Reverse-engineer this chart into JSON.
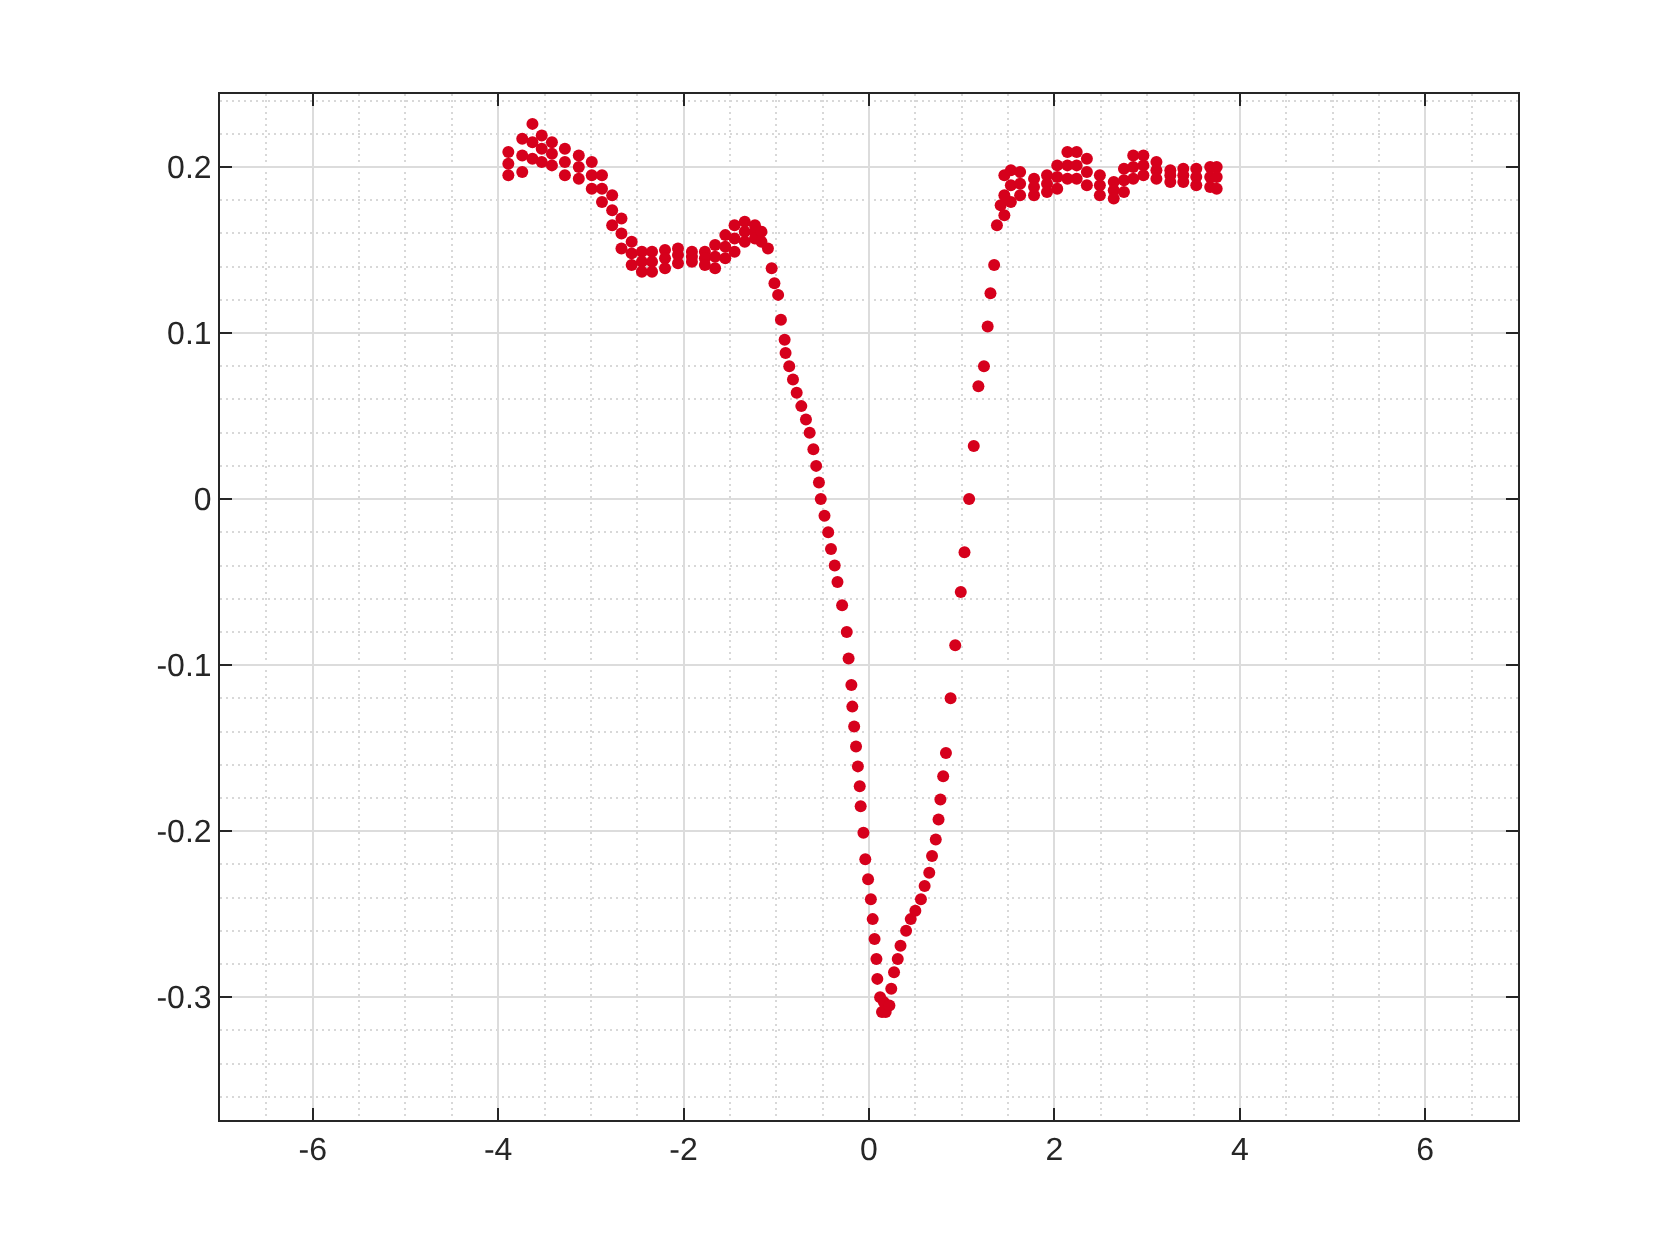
{
  "chart_data": {
    "type": "scatter",
    "color": "#d6001c",
    "marker": "circle",
    "grid": true,
    "xlim": [
      -7,
      7
    ],
    "ylim": [
      -0.374,
      0.244
    ],
    "xticks": [
      -6,
      -4,
      -2,
      0,
      2,
      4,
      6
    ],
    "yticks": [
      -0.3,
      -0.2,
      -0.1,
      0,
      0.1,
      0.2
    ],
    "x": [
      -3.89,
      -3.89,
      -3.89,
      -3.74,
      -3.74,
      -3.74,
      -3.63,
      -3.63,
      -3.63,
      -3.53,
      -3.53,
      -3.53,
      -3.42,
      -3.42,
      -3.42,
      -3.28,
      -3.28,
      -3.28,
      -3.13,
      -3.13,
      -3.13,
      -2.99,
      -2.99,
      -2.99,
      -2.88,
      -2.88,
      -2.88,
      -2.77,
      -2.77,
      -2.77,
      -2.67,
      -2.67,
      -2.67,
      -2.56,
      -2.56,
      -2.56,
      -2.45,
      -2.45,
      -2.45,
      -2.34,
      -2.34,
      -2.34,
      -2.2,
      -2.2,
      -2.2,
      -2.06,
      -2.06,
      -2.06,
      -1.91,
      -1.91,
      -1.91,
      -1.77,
      -1.77,
      -1.77,
      -1.66,
      -1.66,
      -1.66,
      -1.55,
      -1.55,
      -1.55,
      -1.45,
      -1.45,
      -1.45,
      -1.34,
      -1.34,
      -1.34,
      -1.23,
      -1.23,
      -1.23,
      -1.16,
      -1.16,
      -1.09,
      -1.05,
      -1.02,
      -0.98,
      -0.95,
      -0.91,
      -0.9,
      -0.86,
      -0.82,
      -0.78,
      -0.73,
      -0.68,
      -0.64,
      -0.6,
      -0.57,
      -0.54,
      -0.52,
      -0.48,
      -0.44,
      -0.41,
      -0.37,
      -0.34,
      -0.29,
      -0.24,
      -0.22,
      -0.19,
      -0.18,
      -0.16,
      -0.14,
      -0.12,
      -0.1,
      -0.09,
      -0.06,
      -0.04,
      -0.01,
      0.02,
      0.04,
      0.06,
      0.08,
      0.09,
      0.12,
      0.14,
      0.16,
      0.18,
      0.22,
      0.24,
      0.27,
      0.31,
      0.34,
      0.4,
      0.45,
      0.5,
      0.56,
      0.6,
      0.65,
      0.68,
      0.72,
      0.75,
      0.77,
      0.8,
      0.83,
      0.88,
      0.93,
      0.99,
      1.03,
      1.08,
      1.13,
      1.18,
      1.24,
      1.28,
      1.31,
      1.35,
      1.38,
      1.42,
      1.46,
      1.46,
      1.46,
      1.53,
      1.53,
      1.53,
      1.63,
      1.63,
      1.63,
      1.78,
      1.78,
      1.78,
      1.92,
      1.92,
      1.92,
      2.03,
      2.03,
      2.03,
      2.14,
      2.14,
      2.14,
      2.24,
      2.24,
      2.24,
      2.35,
      2.35,
      2.35,
      2.49,
      2.49,
      2.49,
      2.64,
      2.64,
      2.64,
      2.75,
      2.75,
      2.75,
      2.85,
      2.85,
      2.85,
      2.96,
      2.96,
      2.96,
      3.1,
      3.1,
      3.1,
      3.25,
      3.25,
      3.25,
      3.39,
      3.39,
      3.39,
      3.53,
      3.53,
      3.53,
      3.68,
      3.68,
      3.68,
      3.75,
      3.75,
      3.75
    ],
    "values": [
      0.209,
      0.202,
      0.195,
      0.217,
      0.207,
      0.197,
      0.226,
      0.215,
      0.205,
      0.219,
      0.211,
      0.203,
      0.215,
      0.208,
      0.201,
      0.211,
      0.203,
      0.195,
      0.207,
      0.2,
      0.193,
      0.203,
      0.195,
      0.187,
      0.195,
      0.187,
      0.179,
      0.183,
      0.174,
      0.165,
      0.169,
      0.16,
      0.151,
      0.155,
      0.148,
      0.141,
      0.149,
      0.143,
      0.137,
      0.149,
      0.143,
      0.137,
      0.15,
      0.145,
      0.139,
      0.151,
      0.147,
      0.142,
      0.149,
      0.146,
      0.143,
      0.149,
      0.145,
      0.141,
      0.153,
      0.146,
      0.139,
      0.159,
      0.152,
      0.145,
      0.165,
      0.157,
      0.149,
      0.167,
      0.161,
      0.155,
      0.165,
      0.161,
      0.157,
      0.161,
      0.155,
      0.151,
      0.139,
      0.13,
      0.123,
      0.108,
      0.096,
      0.088,
      0.08,
      0.072,
      0.064,
      0.056,
      0.048,
      0.04,
      0.03,
      0.02,
      0.01,
      0.0,
      -0.01,
      -0.02,
      -0.03,
      -0.04,
      -0.05,
      -0.064,
      -0.08,
      -0.096,
      -0.112,
      -0.125,
      -0.137,
      -0.149,
      -0.161,
      -0.173,
      -0.185,
      -0.201,
      -0.217,
      -0.229,
      -0.241,
      -0.253,
      -0.265,
      -0.277,
      -0.289,
      -0.3,
      -0.309,
      -0.303,
      -0.309,
      -0.305,
      -0.295,
      -0.285,
      -0.277,
      -0.269,
      -0.26,
      -0.253,
      -0.248,
      -0.241,
      -0.233,
      -0.225,
      -0.215,
      -0.205,
      -0.193,
      -0.181,
      -0.167,
      -0.153,
      -0.12,
      -0.088,
      -0.056,
      -0.032,
      0.0,
      0.032,
      0.068,
      0.08,
      0.104,
      0.124,
      0.141,
      0.165,
      0.177,
      0.195,
      0.183,
      0.171,
      0.198,
      0.189,
      0.179,
      0.197,
      0.19,
      0.183,
      0.193,
      0.188,
      0.183,
      0.195,
      0.19,
      0.185,
      0.201,
      0.194,
      0.187,
      0.209,
      0.201,
      0.193,
      0.209,
      0.201,
      0.193,
      0.205,
      0.197,
      0.189,
      0.195,
      0.189,
      0.183,
      0.191,
      0.186,
      0.181,
      0.199,
      0.192,
      0.185,
      0.207,
      0.2,
      0.193,
      0.207,
      0.201,
      0.195,
      0.203,
      0.198,
      0.193,
      0.198,
      0.195,
      0.191,
      0.199,
      0.195,
      0.191,
      0.199,
      0.194,
      0.189,
      0.2,
      0.194,
      0.188,
      0.2,
      0.194,
      0.187
    ]
  }
}
